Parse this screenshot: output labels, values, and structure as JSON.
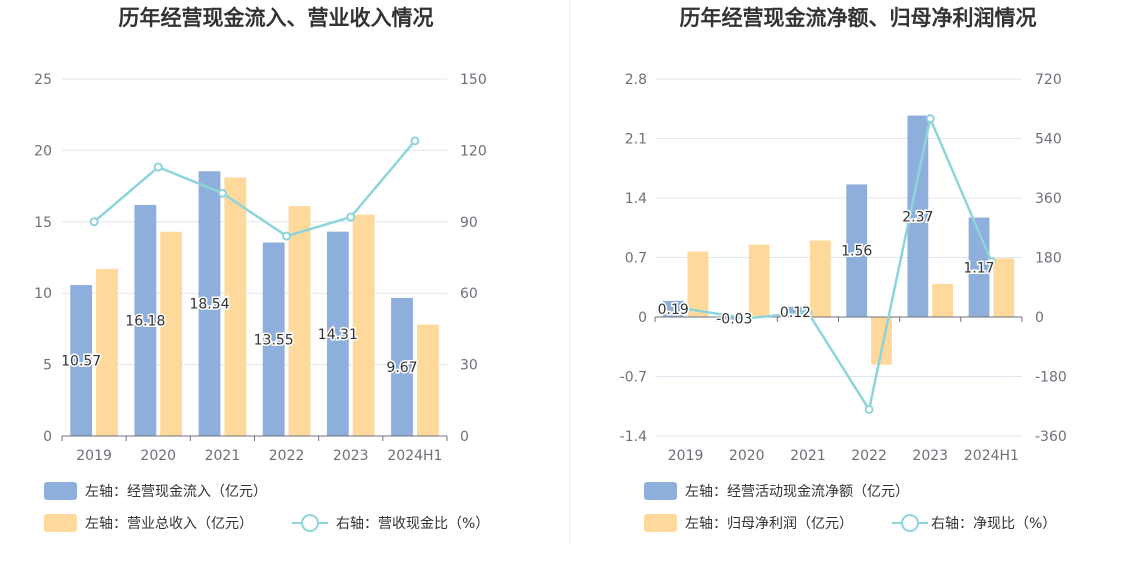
{
  "colors": {
    "bar1": "#8eaedb",
    "bar2": "#ffd89c",
    "line": "#8dd5da",
    "grid": "#e0e6f1",
    "axis": "#6e7079",
    "divider": "#eeeeee"
  },
  "chart_data": [
    {
      "type": "bar",
      "title": "历年经营现金流入、营业收入情况",
      "categories": [
        "2019",
        "2020",
        "2021",
        "2022",
        "2023",
        "2024H1"
      ],
      "left_axis": {
        "ylim": [
          0,
          25
        ],
        "ticks": [
          "0",
          "5",
          "10",
          "15",
          "20",
          "25"
        ]
      },
      "right_axis": {
        "ylim": [
          0,
          150
        ],
        "ticks": [
          "0",
          "30",
          "60",
          "90",
          "120",
          "150"
        ]
      },
      "series": [
        {
          "name": "左轴：经营现金流入（亿元）",
          "kind": "bar",
          "axis": "left",
          "values": [
            10.57,
            16.18,
            18.54,
            13.55,
            14.31,
            9.67
          ],
          "labels": [
            "10.57",
            "16.18",
            "18.54",
            "13.55",
            "14.31",
            "9.67"
          ]
        },
        {
          "name": "左轴：营业总收入（亿元）",
          "kind": "bar",
          "axis": "left",
          "values": [
            11.7,
            14.3,
            18.1,
            16.1,
            15.5,
            7.8
          ]
        },
        {
          "name": "右轴：营收现金比（%）",
          "kind": "line",
          "axis": "right",
          "values": [
            90,
            113,
            102,
            84,
            92,
            124
          ]
        }
      ],
      "grid": true,
      "legend_position": "bottom"
    },
    {
      "type": "bar",
      "title": "历年经营现金流净额、归母净利润情况",
      "categories": [
        "2019",
        "2020",
        "2021",
        "2022",
        "2023",
        "2024H1"
      ],
      "left_axis": {
        "ylim": [
          -1.4,
          2.8
        ],
        "ticks": [
          "-1.4",
          "-0.7",
          "0",
          "0.7",
          "1.4",
          "2.1",
          "2.8"
        ]
      },
      "right_axis": {
        "ylim": [
          -360,
          720
        ],
        "ticks": [
          "-360",
          "-180",
          "0",
          "180",
          "360",
          "540",
          "720"
        ]
      },
      "series": [
        {
          "name": "左轴：经营活动现金流净额（亿元）",
          "kind": "bar",
          "axis": "left",
          "values": [
            0.19,
            -0.03,
            0.12,
            1.56,
            2.37,
            1.17
          ],
          "labels": [
            "0.19",
            "-0.03",
            "0.12",
            "1.56",
            "2.37",
            "1.17"
          ]
        },
        {
          "name": "左轴：归母净利润（亿元）",
          "kind": "bar",
          "axis": "left",
          "values": [
            0.77,
            0.85,
            0.9,
            -0.56,
            0.39,
            0.69
          ]
        },
        {
          "name": "右轴：净现比（%）",
          "kind": "line",
          "axis": "right",
          "values": [
            25,
            -4,
            14,
            -280,
            600,
            168
          ]
        }
      ],
      "grid": true,
      "legend_position": "bottom"
    }
  ]
}
